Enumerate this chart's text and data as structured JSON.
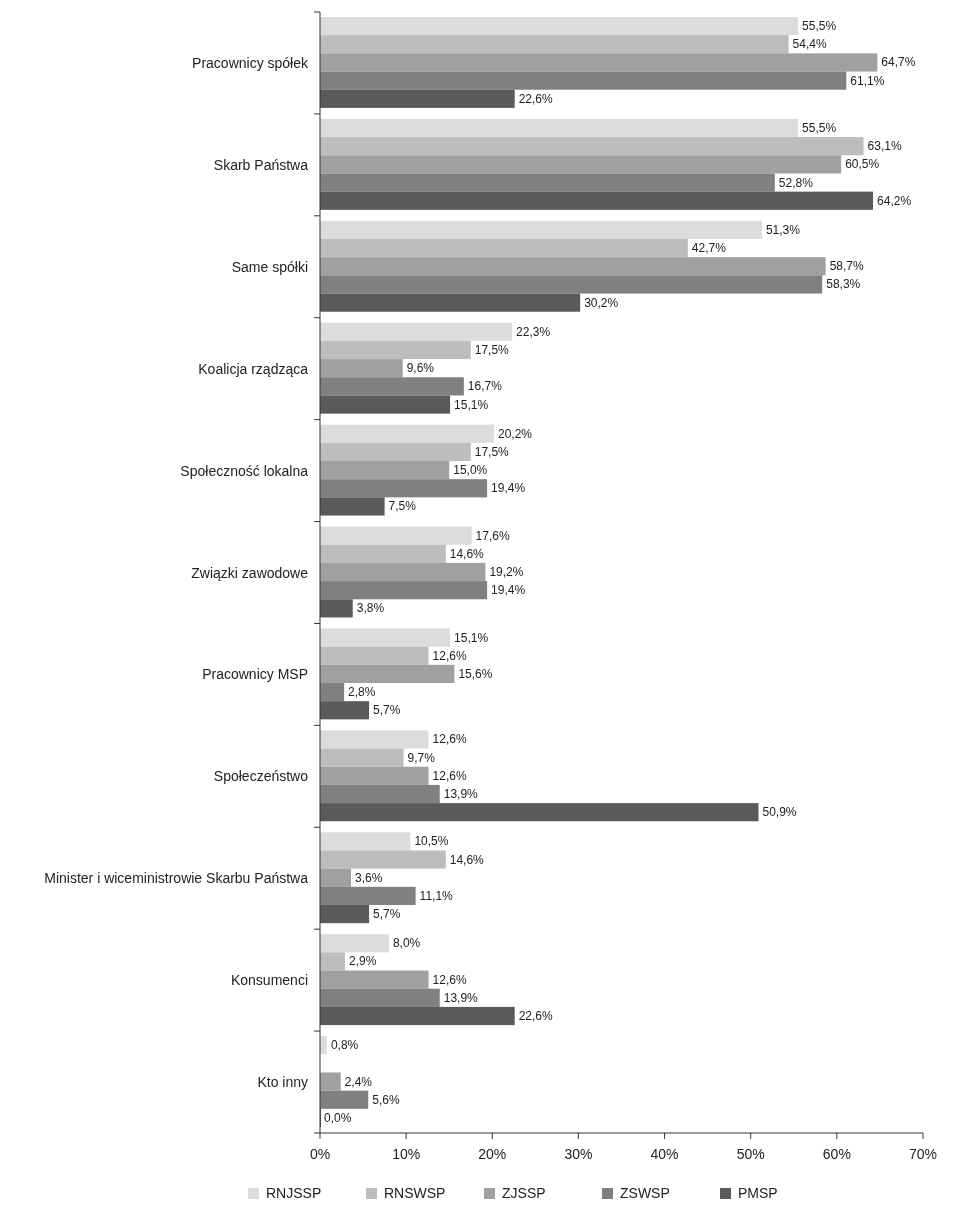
{
  "chart_data": {
    "type": "bar",
    "orientation": "horizontal",
    "categories": [
      "Pracownicy spółek",
      "Skarb Państwa",
      "Same spółki",
      "Koalicja rządząca",
      "Społeczność lokalna",
      "Związki zawodowe",
      "Pracownicy MSP",
      "Społeczeństwo",
      "Minister i wiceministrowie Skarbu Państwa",
      "Konsumenci",
      "Kto inny"
    ],
    "series": [
      {
        "name": "RNJSSP",
        "color": "#dcdcdc",
        "values": [
          55.5,
          55.5,
          51.3,
          22.3,
          20.2,
          17.6,
          15.1,
          12.6,
          10.5,
          8.0,
          0.8
        ],
        "value_labels": [
          "55,5%",
          "55,5%",
          "51,3%",
          "22,3%",
          "20,2%",
          "17,6%",
          "15,1%",
          "12,6%",
          "10,5%",
          "8,0%",
          "0,8%"
        ]
      },
      {
        "name": "RNSWSP",
        "color": "#bdbdbd",
        "values": [
          54.4,
          63.1,
          42.7,
          17.5,
          17.5,
          14.6,
          12.6,
          9.7,
          14.6,
          2.9,
          null
        ],
        "value_labels": [
          "54,4%",
          "63,1%",
          "42,7%",
          "17,5%",
          "17,5%",
          "14,6%",
          "12,6%",
          "9,7%",
          "14,6%",
          "2,9%",
          null
        ]
      },
      {
        "name": "ZJSSP",
        "color": "#a0a0a0",
        "values": [
          64.7,
          60.5,
          58.7,
          9.6,
          15.0,
          19.2,
          15.6,
          12.6,
          3.6,
          12.6,
          2.4
        ],
        "value_labels": [
          "64,7%",
          "60,5%",
          "58,7%",
          "9,6%",
          "15,0%",
          "19,2%",
          "15,6%",
          "12,6%",
          "3,6%",
          "12,6%",
          "2,4%"
        ]
      },
      {
        "name": "ZSWSP",
        "color": "#808080",
        "values": [
          61.1,
          52.8,
          58.3,
          16.7,
          19.4,
          19.4,
          2.8,
          13.9,
          11.1,
          13.9,
          5.6
        ],
        "value_labels": [
          "61,1%",
          "52,8%",
          "58,3%",
          "16,7%",
          "19,4%",
          "19,4%",
          "2,8%",
          "13,9%",
          "11,1%",
          "13,9%",
          "5,6%"
        ]
      },
      {
        "name": "PMSP",
        "color": "#5a5a5a",
        "values": [
          22.6,
          64.2,
          30.2,
          15.1,
          7.5,
          3.8,
          5.7,
          50.9,
          5.7,
          22.6,
          0.0
        ],
        "value_labels": [
          "22,6%",
          "64,2%",
          "30,2%",
          "15,1%",
          "7,5%",
          "3,8%",
          "5,7%",
          "50,9%",
          "5,7%",
          "22,6%",
          "0,0%"
        ]
      }
    ],
    "xlim": [
      0,
      70
    ],
    "xticks": [
      {
        "value": 0,
        "label": "0%"
      },
      {
        "value": 10,
        "label": "10%"
      },
      {
        "value": 20,
        "label": "20%"
      },
      {
        "value": 30,
        "label": "30%"
      },
      {
        "value": 40,
        "label": "40%"
      },
      {
        "value": 50,
        "label": "50%"
      },
      {
        "value": 60,
        "label": "60%"
      },
      {
        "value": 70,
        "label": "70%"
      }
    ],
    "grid": false,
    "legend": "bottom"
  }
}
